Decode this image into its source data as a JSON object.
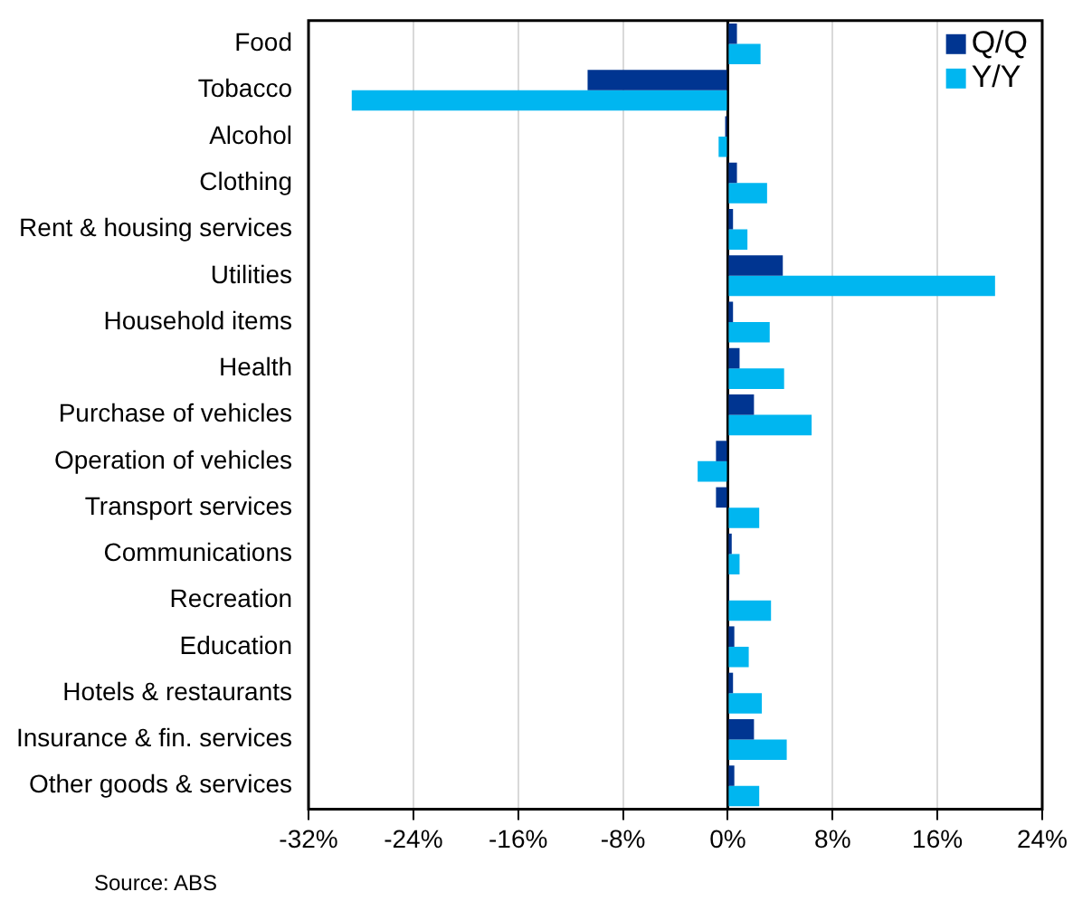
{
  "chart_data": {
    "type": "bar",
    "orientation": "horizontal",
    "categories": [
      "Food",
      "Tobacco",
      "Alcohol",
      "Clothing",
      "Rent & housing services",
      "Utilities",
      "Household items",
      "Health",
      "Purchase of vehicles",
      "Operation of vehicles",
      "Transport services",
      "Communications",
      "Recreation",
      "Education",
      "Hotels & restaurants",
      "Insurance & fin. services",
      "Other goods & services"
    ],
    "series": [
      {
        "name": "Q/Q",
        "color": "#003591",
        "values": [
          0.7,
          -10.7,
          -0.2,
          0.7,
          0.4,
          4.2,
          0.4,
          0.9,
          2.0,
          -0.9,
          -0.9,
          0.3,
          0.1,
          0.5,
          0.4,
          2.0,
          0.5
        ]
      },
      {
        "name": "Y/Y",
        "color": "#00b6f0",
        "values": [
          2.5,
          -28.7,
          -0.7,
          3.0,
          1.5,
          20.4,
          3.2,
          4.3,
          6.4,
          -2.3,
          2.4,
          0.9,
          3.3,
          1.6,
          2.6,
          4.5,
          2.4
        ]
      }
    ],
    "xlim": [
      -32,
      24
    ],
    "xticks": [
      {
        "value": -32,
        "label": "-32%"
      },
      {
        "value": -24,
        "label": "-24%"
      },
      {
        "value": -16,
        "label": "-16%"
      },
      {
        "value": -8,
        "label": "-8%"
      },
      {
        "value": 0,
        "label": "0%"
      },
      {
        "value": 8,
        "label": "8%"
      },
      {
        "value": 16,
        "label": "16%"
      },
      {
        "value": 24,
        "label": "24%"
      }
    ],
    "grid": "x",
    "legend": "top right",
    "annotations": [
      "Source: ABS"
    ]
  }
}
